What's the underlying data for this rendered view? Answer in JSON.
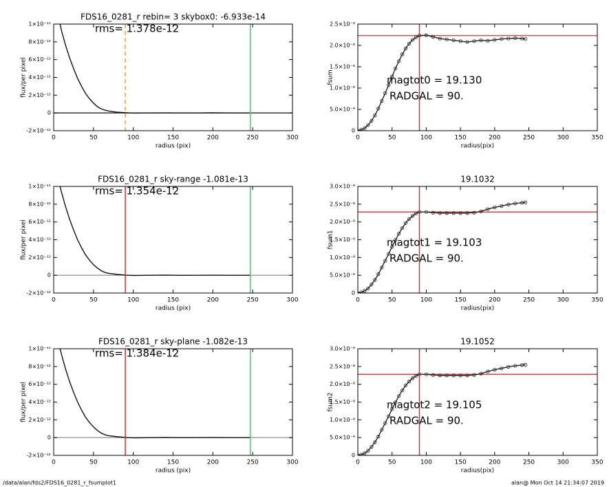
{
  "chart_data": [
    {
      "type": "line",
      "title": "FDS16_0281_r rebin= 3    skybox0: -6.933e-14",
      "annotations": [
        "rms= 1.378e-12"
      ],
      "xlabel": "radius (pix)",
      "ylabel": "flux/per pixel",
      "xlim": [
        0,
        300
      ],
      "xticks": [
        0,
        50,
        100,
        150,
        200,
        250,
        300
      ],
      "ylim": [
        -2e-12,
        1e-11
      ],
      "yticks": [
        {
          "value": -2e-12,
          "label": "-2×10⁻¹²"
        },
        0,
        {
          "value": 2e-12,
          "label": "2×10⁻¹²"
        },
        {
          "value": 4e-12,
          "label": "4×10⁻¹²"
        },
        {
          "value": 6e-12,
          "label": "6×10⁻¹²"
        },
        {
          "value": 8e-12,
          "label": "8×10⁻¹²"
        },
        {
          "value": 1e-11,
          "label": "1×10⁻¹¹"
        }
      ],
      "hlines": [
        {
          "y": 0,
          "color": "#222222"
        }
      ],
      "vlines": [
        {
          "x": 90,
          "color": "#e8a040",
          "dashed": true
        },
        {
          "x": 247,
          "color": "#33dd33",
          "dashed": false
        }
      ],
      "marker": "none",
      "series": [
        {
          "color": "#111111",
          "x": [
            8,
            10,
            15,
            20,
            25,
            30,
            35,
            40,
            45,
            50,
            55,
            60,
            65,
            70,
            80,
            90,
            100,
            120,
            140,
            160,
            180,
            200,
            220,
            247
          ],
          "values": [
            1e-11,
            9.2e-12,
            7.6e-12,
            6.2e-12,
            5e-12,
            3.9e-12,
            3e-12,
            2.2e-12,
            1.6e-12,
            1.1e-12,
            7e-13,
            4.5e-13,
            3e-13,
            2e-13,
            8e-14,
            3e-14,
            -2e-14,
            0,
            1e-14,
            -1e-14,
            0,
            2e-14,
            0,
            0
          ]
        }
      ]
    },
    {
      "type": "line",
      "annotations": [
        "magtot0 = 19.130",
        "RADGAL =     90."
      ],
      "xlabel": "radius(pix)",
      "ylabel": "fsum",
      "xlim": [
        0,
        350
      ],
      "xticks": [
        0,
        50,
        100,
        150,
        200,
        250,
        300,
        350
      ],
      "ylim": [
        0,
        2.5e-08
      ],
      "yticks": [
        0,
        {
          "value": 5e-09,
          "label": "5.0×10⁻⁹"
        },
        {
          "value": 1e-08,
          "label": "1.0×10⁻⁸"
        },
        {
          "value": 1.5e-08,
          "label": "1.5×10⁻⁸"
        },
        {
          "value": 2e-08,
          "label": "2.0×10⁻⁸"
        },
        {
          "value": 2.5e-08,
          "label": "2.5×10⁻⁸"
        }
      ],
      "hlines": [
        {
          "y": 2.23e-08,
          "color": "#d03030"
        }
      ],
      "vlines": [
        {
          "x": 90,
          "color": "#d03030",
          "dashed": false
        }
      ],
      "marker": "circle",
      "series": [
        {
          "color": "#222222",
          "x": [
            0,
            5,
            10,
            15,
            20,
            25,
            30,
            35,
            40,
            45,
            50,
            55,
            60,
            65,
            70,
            75,
            80,
            85,
            90,
            100,
            110,
            120,
            130,
            140,
            150,
            160,
            170,
            180,
            190,
            200,
            210,
            220,
            230,
            240,
            245
          ],
          "values": [
            0,
            2e-10,
            6e-10,
            1.3e-09,
            2.3e-09,
            3.6e-09,
            5.2e-09,
            7e-09,
            8.8e-09,
            1.07e-08,
            1.27e-08,
            1.46e-08,
            1.63e-08,
            1.79e-08,
            1.93e-08,
            2.04e-08,
            2.13e-08,
            2.19e-08,
            2.23e-08,
            2.24e-08,
            2.2e-08,
            2.16e-08,
            2.14e-08,
            2.12e-08,
            2.1e-08,
            2.08e-08,
            2.1e-08,
            2.12e-08,
            2.11e-08,
            2.13e-08,
            2.15e-08,
            2.16e-08,
            2.17e-08,
            2.16e-08,
            2.15e-08
          ]
        }
      ]
    },
    {
      "type": "line",
      "title": "FDS16_0281_r sky-range -1.081e-13",
      "annotations": [
        "rms= 1.354e-12"
      ],
      "xlabel": "radius (pix)",
      "ylabel": "flux/per pixel",
      "xlim": [
        0,
        300
      ],
      "xticks": [
        0,
        50,
        100,
        150,
        200,
        250,
        300
      ],
      "ylim": [
        -2e-12,
        1e-11
      ],
      "yticks": [
        {
          "value": -2e-12,
          "label": "-2×10⁻¹²"
        },
        0,
        {
          "value": 2e-12,
          "label": "2×10⁻¹²"
        },
        {
          "value": 4e-12,
          "label": "4×10⁻¹²"
        },
        {
          "value": 6e-12,
          "label": "6×10⁻¹²"
        },
        {
          "value": 8e-12,
          "label": "8×10⁻¹²"
        },
        {
          "value": 1e-11,
          "label": "1×10⁻¹¹"
        }
      ],
      "hlines": [
        {
          "y": 0,
          "color": "#999999"
        }
      ],
      "vlines": [
        {
          "x": 90,
          "color": "#d03030",
          "dashed": false
        },
        {
          "x": 247,
          "color": "#33dd33",
          "dashed": false
        }
      ],
      "marker": "none",
      "series": [
        {
          "color": "#111111",
          "x": [
            8,
            10,
            15,
            20,
            25,
            30,
            35,
            40,
            45,
            50,
            55,
            60,
            65,
            70,
            80,
            90,
            100,
            120,
            140,
            160,
            180,
            200,
            220,
            247
          ],
          "values": [
            1e-11,
            9.3e-12,
            7.7e-12,
            6.3e-12,
            5.1e-12,
            4e-12,
            3.1e-12,
            2.3e-12,
            1.7e-12,
            1.2e-12,
            8e-13,
            5e-13,
            3e-13,
            2e-13,
            1e-13,
            2e-14,
            -3e-14,
            0,
            2e-14,
            -1e-14,
            0,
            1e-14,
            0,
            0
          ]
        }
      ]
    },
    {
      "type": "line",
      "title": "19.1032",
      "annotations": [
        "magtot1 = 19.103",
        "RADGAL =     90."
      ],
      "xlabel": "radius(pix)",
      "ylabel": "fsum1",
      "xlim": [
        0,
        350
      ],
      "xticks": [
        0,
        50,
        100,
        150,
        200,
        250,
        300,
        350
      ],
      "ylim": [
        0,
        3e-08
      ],
      "yticks": [
        0,
        {
          "value": 5e-09,
          "label": "5.0×10⁻⁹"
        },
        {
          "value": 1e-08,
          "label": "1.0×10⁻⁸"
        },
        {
          "value": 1.5e-08,
          "label": "1.5×10⁻⁸"
        },
        {
          "value": 2e-08,
          "label": "2.0×10⁻⁸"
        },
        {
          "value": 2.5e-08,
          "label": "2.5×10⁻⁸"
        },
        {
          "value": 3e-08,
          "label": "3.0×10⁻⁸"
        }
      ],
      "hlines": [
        {
          "y": 2.28e-08,
          "color": "#d03030"
        }
      ],
      "vlines": [
        {
          "x": 90,
          "color": "#d03030",
          "dashed": false
        }
      ],
      "marker": "circle",
      "series": [
        {
          "color": "#222222",
          "x": [
            0,
            5,
            10,
            15,
            20,
            25,
            30,
            35,
            40,
            45,
            50,
            55,
            60,
            65,
            70,
            75,
            80,
            85,
            90,
            100,
            110,
            120,
            130,
            140,
            150,
            160,
            170,
            180,
            190,
            200,
            210,
            220,
            230,
            240,
            245
          ],
          "values": [
            0,
            2e-10,
            6e-10,
            1.3e-09,
            2.4e-09,
            3.7e-09,
            5.3e-09,
            7.2e-09,
            9.1e-09,
            1.1e-08,
            1.3e-08,
            1.49e-08,
            1.67e-08,
            1.83e-08,
            1.97e-08,
            2.08e-08,
            2.17e-08,
            2.24e-08,
            2.28e-08,
            2.28e-08,
            2.26e-08,
            2.25e-08,
            2.25e-08,
            2.25e-08,
            2.25e-08,
            2.25e-08,
            2.26e-08,
            2.3e-08,
            2.36e-08,
            2.41e-08,
            2.45e-08,
            2.49e-08,
            2.52e-08,
            2.54e-08,
            2.55e-08
          ]
        }
      ]
    },
    {
      "type": "line",
      "title": "FDS16_0281_r sky-plane -1.082e-13",
      "annotations": [
        "rms= 1.384e-12"
      ],
      "xlabel": "radius (pix)",
      "ylabel": "flux/per pixel",
      "xlim": [
        0,
        300
      ],
      "xticks": [
        0,
        50,
        100,
        150,
        200,
        250,
        300
      ],
      "ylim": [
        -2e-12,
        1e-11
      ],
      "yticks": [
        {
          "value": -2e-12,
          "label": "-2×10⁻¹²"
        },
        0,
        {
          "value": 2e-12,
          "label": "2×10⁻¹²"
        },
        {
          "value": 4e-12,
          "label": "4×10⁻¹²"
        },
        {
          "value": 6e-12,
          "label": "6×10⁻¹²"
        },
        {
          "value": 8e-12,
          "label": "8×10⁻¹²"
        },
        {
          "value": 1e-11,
          "label": "1×10⁻¹¹"
        }
      ],
      "hlines": [
        {
          "y": 0,
          "color": "#999999"
        }
      ],
      "vlines": [
        {
          "x": 90,
          "color": "#d03030",
          "dashed": false
        },
        {
          "x": 247,
          "color": "#33dd33",
          "dashed": false
        }
      ],
      "marker": "none",
      "series": [
        {
          "color": "#111111",
          "x": [
            8,
            10,
            15,
            20,
            25,
            30,
            35,
            40,
            45,
            50,
            55,
            60,
            65,
            70,
            80,
            90,
            100,
            120,
            140,
            160,
            180,
            200,
            220,
            247
          ],
          "values": [
            1e-11,
            9.3e-12,
            7.7e-12,
            6.3e-12,
            5.1e-12,
            4e-12,
            3.1e-12,
            2.3e-12,
            1.7e-12,
            1.2e-12,
            8e-13,
            5e-13,
            3e-13,
            2e-13,
            1e-13,
            2e-14,
            -3e-14,
            -1e-14,
            2e-14,
            -1e-14,
            0,
            1e-14,
            0,
            0
          ]
        }
      ]
    },
    {
      "type": "line",
      "title": "19.1052",
      "annotations": [
        "magtot2 = 19.105",
        "RADGAL =     90."
      ],
      "xlabel": "radius(pix)",
      "ylabel": "fsum2",
      "xlim": [
        0,
        350
      ],
      "xticks": [
        0,
        50,
        100,
        150,
        200,
        250,
        300,
        350
      ],
      "ylim": [
        0,
        3e-08
      ],
      "yticks": [
        0,
        {
          "value": 5e-09,
          "label": "5.0×10⁻⁹"
        },
        {
          "value": 1e-08,
          "label": "1.0×10⁻⁸"
        },
        {
          "value": 1.5e-08,
          "label": "1.5×10⁻⁸"
        },
        {
          "value": 2e-08,
          "label": "2.0×10⁻⁸"
        },
        {
          "value": 2.5e-08,
          "label": "2.5×10⁻⁸"
        },
        {
          "value": 3e-08,
          "label": "3.0×10⁻⁸"
        }
      ],
      "hlines": [
        {
          "y": 2.28e-08,
          "color": "#d03030"
        }
      ],
      "vlines": [
        {
          "x": 90,
          "color": "#d03030",
          "dashed": false
        }
      ],
      "marker": "circle",
      "series": [
        {
          "color": "#222222",
          "x": [
            0,
            5,
            10,
            15,
            20,
            25,
            30,
            35,
            40,
            45,
            50,
            55,
            60,
            65,
            70,
            75,
            80,
            85,
            90,
            100,
            110,
            120,
            130,
            140,
            150,
            160,
            170,
            180,
            190,
            200,
            210,
            220,
            230,
            240,
            245
          ],
          "values": [
            0,
            2e-10,
            6e-10,
            1.3e-09,
            2.4e-09,
            3.7e-09,
            5.3e-09,
            7.2e-09,
            9.1e-09,
            1.1e-08,
            1.3e-08,
            1.49e-08,
            1.67e-08,
            1.83e-08,
            1.97e-08,
            2.08e-08,
            2.17e-08,
            2.24e-08,
            2.28e-08,
            2.28e-08,
            2.26e-08,
            2.25e-08,
            2.25e-08,
            2.25e-08,
            2.25e-08,
            2.25e-08,
            2.26e-08,
            2.3e-08,
            2.36e-08,
            2.41e-08,
            2.45e-08,
            2.49e-08,
            2.52e-08,
            2.54e-08,
            2.55e-08
          ]
        }
      ]
    }
  ],
  "footer": {
    "left": "/data/alan/fds2/FDS16_0281_r_fsumplot1",
    "right": "alan@  Mon Oct 14 21:34:07 2019"
  }
}
